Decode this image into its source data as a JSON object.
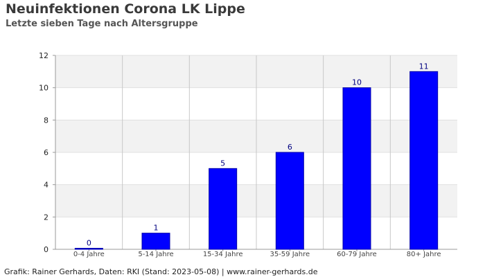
{
  "header": {
    "title": "Neuinfektionen Corona LK Lippe",
    "subtitle": "Letzte sieben Tage nach Altersgruppe"
  },
  "footer": {
    "text": "Grafik: Rainer Gerhards, Daten: RKI (Stand: 2023-05-08) | www.rainer-gerhards.de"
  },
  "colors": {
    "bar": "#0000ff",
    "bar_outline": "#0000aa",
    "data_label": "#000080",
    "band": "#f2f2f2",
    "grid": "#c8c8c8"
  },
  "chart_data": {
    "type": "bar",
    "title": "Neuinfektionen Corona LK Lippe",
    "subtitle": "Letzte sieben Tage nach Altersgruppe",
    "xlabel": "",
    "ylabel": "",
    "categories": [
      "0-4 Jahre",
      "5-14 Jahre",
      "15-34 Jahre",
      "35-59 Jahre",
      "60-79 Jahre",
      "80+ Jahre"
    ],
    "values": [
      0,
      1,
      5,
      6,
      10,
      11
    ],
    "ylim": [
      0,
      12
    ],
    "yticks": [
      0,
      2,
      4,
      6,
      8,
      10,
      12
    ],
    "grid": true,
    "legend": "none",
    "data_labels": true
  }
}
